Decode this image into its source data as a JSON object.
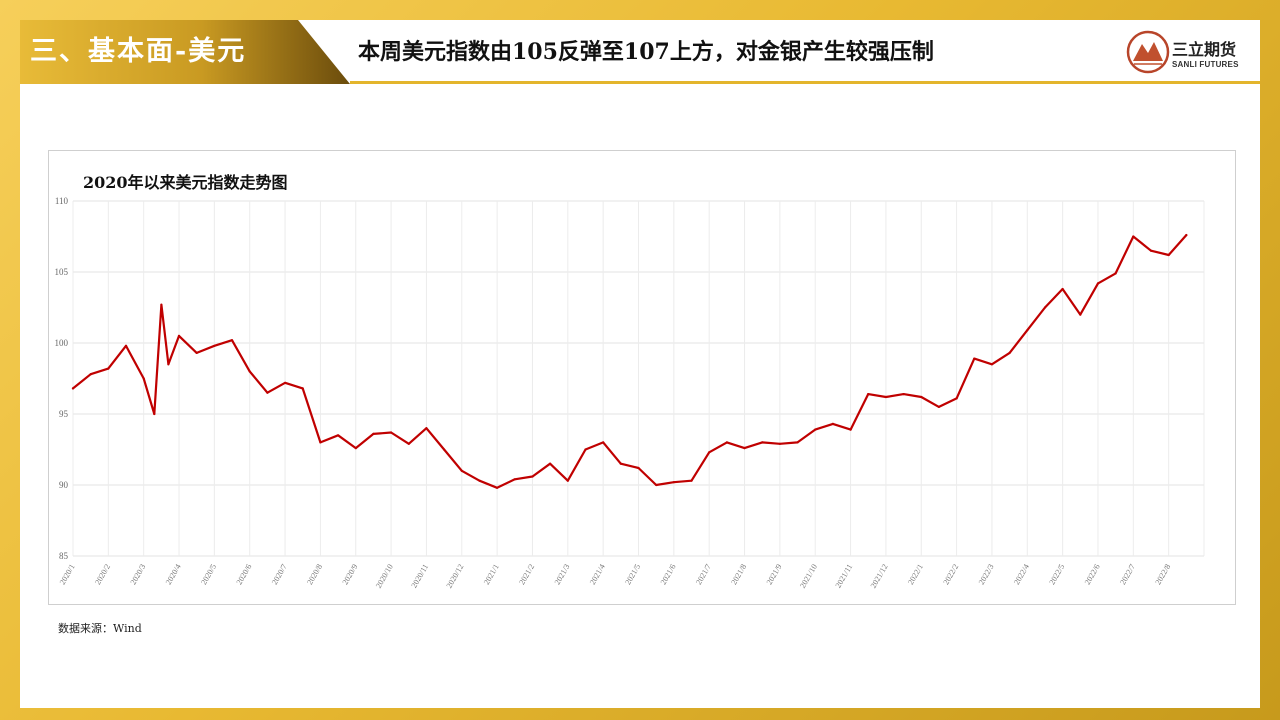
{
  "section": {
    "title": "三、基本面-美元"
  },
  "headline": "本周美元指数由105反弹至107上方，对金银产生较强压制",
  "logo": {
    "cn": "三立期货",
    "en": "SANLI FUTURES"
  },
  "colors": {
    "line": "#c00000",
    "tab_dark": "#7a5a10",
    "tab_gold": "#e5b732",
    "accent": "#e3b52c"
  },
  "source_note": "数据来源：Wind",
  "chart_data": {
    "type": "line",
    "title": "2020年以来美元指数走势图",
    "xlabel": "",
    "ylabel": "",
    "ylim": [
      85,
      110
    ],
    "yticks": [
      85,
      90,
      95,
      100,
      105,
      110
    ],
    "grid": true,
    "x_ticks": [
      "2020/1",
      "2020/2",
      "2020/3",
      "2020/4",
      "2020/5",
      "2020/6",
      "2020/7",
      "2020/8",
      "2020/9",
      "2020/10",
      "2020/11",
      "2020/12",
      "2021/1",
      "2021/2",
      "2021/3",
      "2021/4",
      "2021/5",
      "2021/6",
      "2021/7",
      "2021/8",
      "2021/9",
      "2021/10",
      "2021/11",
      "2021/12",
      "2022/1",
      "2022/2",
      "2022/3",
      "2022/4",
      "2022/5",
      "2022/6",
      "2022/7",
      "2022/8"
    ],
    "series": [
      {
        "name": "",
        "x": [
          "2020/1",
          "2020/1.5",
          "2020/2",
          "2020/2.5",
          "2020/3",
          "2020/3.3",
          "2020/3.5",
          "2020/3.7",
          "2020/4",
          "2020/4.5",
          "2020/5",
          "2020/5.5",
          "2020/6",
          "2020/6.5",
          "2020/7",
          "2020/7.5",
          "2020/8",
          "2020/8.5",
          "2020/9",
          "2020/9.5",
          "2020/10",
          "2020/10.5",
          "2020/11",
          "2020/11.5",
          "2020/12",
          "2020/12.5",
          "2021/1",
          "2021/1.5",
          "2021/2",
          "2021/2.5",
          "2021/3",
          "2021/3.5",
          "2021/4",
          "2021/4.5",
          "2021/5",
          "2021/5.5",
          "2021/6",
          "2021/6.5",
          "2021/7",
          "2021/7.5",
          "2021/8",
          "2021/8.5",
          "2021/9",
          "2021/9.5",
          "2021/10",
          "2021/10.5",
          "2021/11",
          "2021/11.5",
          "2021/12",
          "2021/12.5",
          "2022/1",
          "2022/1.5",
          "2022/2",
          "2022/2.5",
          "2022/3",
          "2022/3.5",
          "2022/4",
          "2022/4.5",
          "2022/5",
          "2022/5.5",
          "2022/6",
          "2022/6.5",
          "2022/7",
          "2022/7.5",
          "2022/8",
          "2022/8.5"
        ],
        "values": [
          96.8,
          97.8,
          98.2,
          99.8,
          97.5,
          95.0,
          102.7,
          98.5,
          100.5,
          99.3,
          99.8,
          100.2,
          98.0,
          96.5,
          97.2,
          96.8,
          93.0,
          93.5,
          92.6,
          93.6,
          93.7,
          92.9,
          94.0,
          92.5,
          91.0,
          90.3,
          89.8,
          90.4,
          90.6,
          91.5,
          90.3,
          92.5,
          93.0,
          91.5,
          91.2,
          90.0,
          90.2,
          90.3,
          92.3,
          93.0,
          92.6,
          93.0,
          92.9,
          93.0,
          93.9,
          94.3,
          93.9,
          96.4,
          96.2,
          96.4,
          96.2,
          95.5,
          96.1,
          98.9,
          98.5,
          99.3,
          100.9,
          102.5,
          103.8,
          102.0,
          104.2,
          104.9,
          107.5,
          106.5,
          106.2,
          107.6
        ]
      }
    ]
  }
}
